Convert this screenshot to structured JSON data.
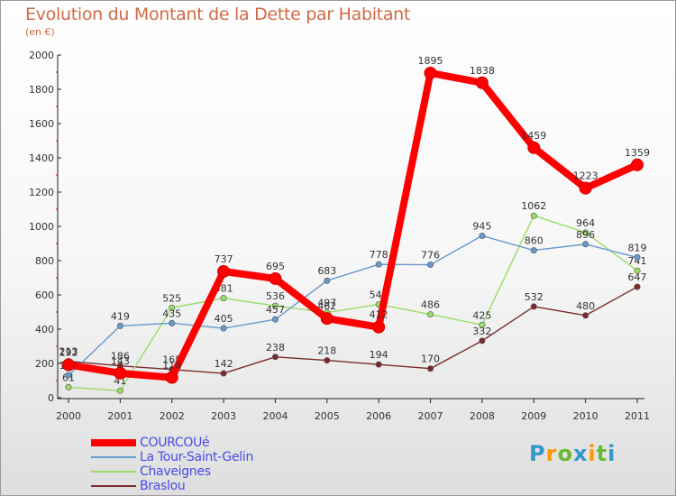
{
  "header": {
    "title": "Evolution du Montant de la Dette par Habitant",
    "subtitle": "(en €)"
  },
  "chart_data": {
    "type": "line",
    "title": "Evolution du Montant de la Dette par Habitant",
    "subtitle": "(en €)",
    "xlabel": "",
    "ylabel": "",
    "x": [
      "2000",
      "2001",
      "2002",
      "2003",
      "2004",
      "2005",
      "2006",
      "2007",
      "2008",
      "2009",
      "2010",
      "2011"
    ],
    "yticks": [
      "0",
      "200",
      "400",
      "600",
      "800",
      "1000",
      "1200",
      "1400",
      "1600",
      "1800",
      "2000"
    ],
    "ylim": [
      0,
      2000
    ],
    "grid": false,
    "legend_position": "bottom-left",
    "series": [
      {
        "name": "COURCOUé",
        "color": "#ff0000",
        "values": [
          192,
          143,
          118,
          737,
          695,
          462,
          412,
          1895,
          1838,
          1459,
          1223,
          1359
        ]
      },
      {
        "name": "La Tour-Saint-Gelin",
        "color": "#6699cc",
        "values": [
          131,
          419,
          435,
          405,
          457,
          683,
          778,
          776,
          945,
          860,
          896,
          819
        ]
      },
      {
        "name": "Chaveignes",
        "color": "#99dd66",
        "values": [
          61,
          41,
          525,
          581,
          536,
          497,
          545,
          486,
          425,
          1062,
          964,
          741
        ]
      },
      {
        "name": "Braslou",
        "color": "#7a2a2a",
        "values": [
          213,
          186,
          165,
          142,
          238,
          218,
          194,
          170,
          332,
          532,
          480,
          647
        ]
      }
    ]
  },
  "legend": {
    "items": [
      {
        "label": "COURCOUé"
      },
      {
        "label": "La Tour-Saint-Gelin"
      },
      {
        "label": "Chaveignes"
      },
      {
        "label": "Braslou"
      }
    ]
  },
  "logo": {
    "text": "Proxiti"
  }
}
